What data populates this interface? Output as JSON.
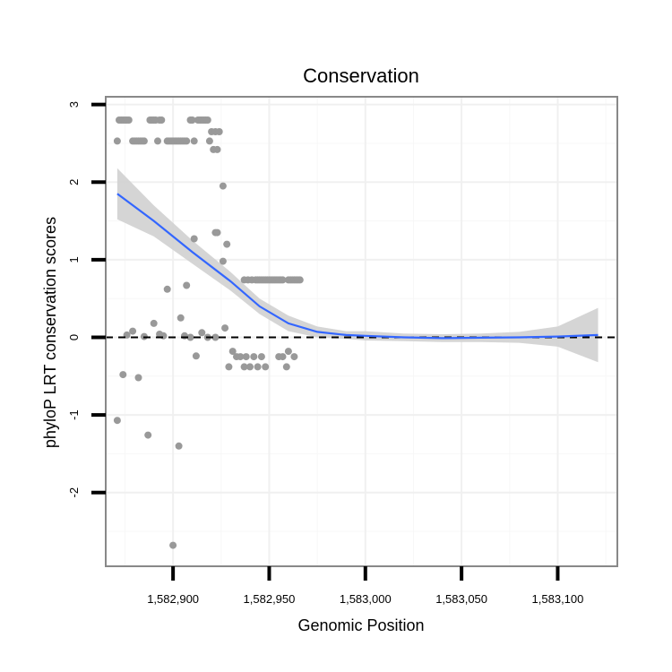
{
  "chart_data": {
    "type": "scatter",
    "title": "Conservation",
    "xlabel": "Genomic Position",
    "ylabel": "phyloP LRT conservation scores",
    "xlim": [
      1582865,
      1583131
    ],
    "ylim": [
      -2.95,
      3.1
    ],
    "x_ticks": [
      {
        "value": 1582900,
        "label": "1,582,900"
      },
      {
        "value": 1582950,
        "label": "1,582,950"
      },
      {
        "value": 1583000,
        "label": "1,583,000"
      },
      {
        "value": 1583050,
        "label": "1,583,050"
      },
      {
        "value": 1583100,
        "label": "1,583,100"
      }
    ],
    "y_ticks": [
      {
        "value": 3,
        "label": "3"
      },
      {
        "value": 2,
        "label": "2"
      },
      {
        "value": 1,
        "label": "1"
      },
      {
        "value": 0,
        "label": "0"
      },
      {
        "value": -1,
        "label": "-1"
      },
      {
        "value": -2,
        "label": "-2"
      }
    ],
    "reference_line": {
      "y": 0,
      "style": "dashed"
    },
    "points": [
      [
        1582871,
        2.53
      ],
      [
        1582872,
        2.8
      ],
      [
        1582873,
        2.8
      ],
      [
        1582874,
        2.8
      ],
      [
        1582875,
        2.8
      ],
      [
        1582876,
        2.8
      ],
      [
        1582877,
        2.8
      ],
      [
        1582879,
        2.53
      ],
      [
        1582880,
        2.53
      ],
      [
        1582881,
        2.53
      ],
      [
        1582882,
        2.53
      ],
      [
        1582883,
        2.53
      ],
      [
        1582884,
        2.53
      ],
      [
        1582885,
        2.53
      ],
      [
        1582888,
        2.8
      ],
      [
        1582889,
        2.8
      ],
      [
        1582890,
        2.8
      ],
      [
        1582891,
        2.8
      ],
      [
        1582892,
        2.53
      ],
      [
        1582893,
        2.8
      ],
      [
        1582894,
        2.8
      ],
      [
        1582897,
        2.53
      ],
      [
        1582898,
        2.53
      ],
      [
        1582899,
        2.53
      ],
      [
        1582900,
        2.53
      ],
      [
        1582901,
        2.53
      ],
      [
        1582902,
        2.53
      ],
      [
        1582903,
        2.53
      ],
      [
        1582904,
        2.53
      ],
      [
        1582905,
        2.53
      ],
      [
        1582906,
        2.53
      ],
      [
        1582907,
        2.53
      ],
      [
        1582909,
        2.8
      ],
      [
        1582910,
        2.8
      ],
      [
        1582911,
        2.53
      ],
      [
        1582913,
        2.8
      ],
      [
        1582914,
        2.8
      ],
      [
        1582915,
        2.8
      ],
      [
        1582916,
        2.8
      ],
      [
        1582917,
        2.8
      ],
      [
        1582918,
        2.8
      ],
      [
        1582919,
        2.53
      ],
      [
        1582920,
        2.65
      ],
      [
        1582921,
        2.42
      ],
      [
        1582922,
        2.65
      ],
      [
        1582923,
        2.42
      ],
      [
        1582924,
        2.65
      ],
      [
        1582926,
        1.95
      ],
      [
        1582922,
        1.35
      ],
      [
        1582923,
        1.35
      ],
      [
        1582926,
        0.98
      ],
      [
        1582928,
        1.2
      ],
      [
        1582937,
        0.74
      ],
      [
        1582939,
        0.74
      ],
      [
        1582941,
        0.74
      ],
      [
        1582943,
        0.74
      ],
      [
        1582944,
        0.74
      ],
      [
        1582945,
        0.74
      ],
      [
        1582946,
        0.74
      ],
      [
        1582947,
        0.74
      ],
      [
        1582948,
        0.74
      ],
      [
        1582949,
        0.74
      ],
      [
        1582950,
        0.74
      ],
      [
        1582951,
        0.74
      ],
      [
        1582952,
        0.74
      ],
      [
        1582953,
        0.74
      ],
      [
        1582954,
        0.74
      ],
      [
        1582955,
        0.74
      ],
      [
        1582956,
        0.74
      ],
      [
        1582957,
        0.74
      ],
      [
        1582960,
        0.74
      ],
      [
        1582961,
        0.74
      ],
      [
        1582962,
        0.74
      ],
      [
        1582963,
        0.74
      ],
      [
        1582964,
        0.74
      ],
      [
        1582965,
        0.74
      ],
      [
        1582966,
        0.74
      ],
      [
        1582871,
        -1.07
      ],
      [
        1582874,
        -0.48
      ],
      [
        1582876,
        0.03
      ],
      [
        1582879,
        0.08
      ],
      [
        1582882,
        -0.52
      ],
      [
        1582885,
        0.01
      ],
      [
        1582887,
        -1.26
      ],
      [
        1582890,
        0.18
      ],
      [
        1582893,
        0.04
      ],
      [
        1582895,
        0.02
      ],
      [
        1582897,
        0.62
      ],
      [
        1582900,
        -2.68
      ],
      [
        1582903,
        -1.4
      ],
      [
        1582904,
        0.25
      ],
      [
        1582906,
        0.02
      ],
      [
        1582907,
        0.67
      ],
      [
        1582909,
        0.0
      ],
      [
        1582911,
        1.27
      ],
      [
        1582912,
        -0.24
      ],
      [
        1582915,
        0.06
      ],
      [
        1582918,
        0.0
      ],
      [
        1582922,
        0.0
      ],
      [
        1582927,
        0.12
      ],
      [
        1582929,
        -0.38
      ],
      [
        1582931,
        -0.18
      ],
      [
        1582933,
        -0.25
      ],
      [
        1582935,
        -0.25
      ],
      [
        1582937,
        -0.38
      ],
      [
        1582938,
        -0.25
      ],
      [
        1582940,
        -0.38
      ],
      [
        1582942,
        -0.25
      ],
      [
        1582944,
        -0.38
      ],
      [
        1582946,
        -0.25
      ],
      [
        1582948,
        -0.38
      ],
      [
        1582955,
        -0.25
      ],
      [
        1582957,
        -0.25
      ],
      [
        1582959,
        -0.38
      ],
      [
        1582960,
        -0.18
      ],
      [
        1582963,
        -0.25
      ]
    ],
    "smooth": {
      "color": "#3366ff",
      "x": [
        1582871,
        1582890,
        1582910,
        1582930,
        1582945,
        1582960,
        1582975,
        1582990,
        1583000,
        1583020,
        1583040,
        1583060,
        1583080,
        1583100,
        1583121
      ],
      "y": [
        1.85,
        1.5,
        1.1,
        0.72,
        0.4,
        0.18,
        0.07,
        0.03,
        0.02,
        0.0,
        -0.01,
        -0.005,
        0.0,
        0.01,
        0.03
      ],
      "lower": [
        1.52,
        1.3,
        0.95,
        0.6,
        0.3,
        0.08,
        0.0,
        -0.02,
        -0.04,
        -0.05,
        -0.06,
        -0.06,
        -0.07,
        -0.12,
        -0.32
      ],
      "upper": [
        2.18,
        1.7,
        1.25,
        0.84,
        0.5,
        0.28,
        0.14,
        0.08,
        0.08,
        0.05,
        0.04,
        0.05,
        0.07,
        0.14,
        0.38
      ]
    },
    "colors": {
      "points": "#999999",
      "ribbon": "#d0d0d0",
      "panel_border": "#888888",
      "grid_major": "#f0f0f0",
      "grid_minor": "#f7f7f7",
      "ticks": "#000000"
    },
    "grid": true
  }
}
